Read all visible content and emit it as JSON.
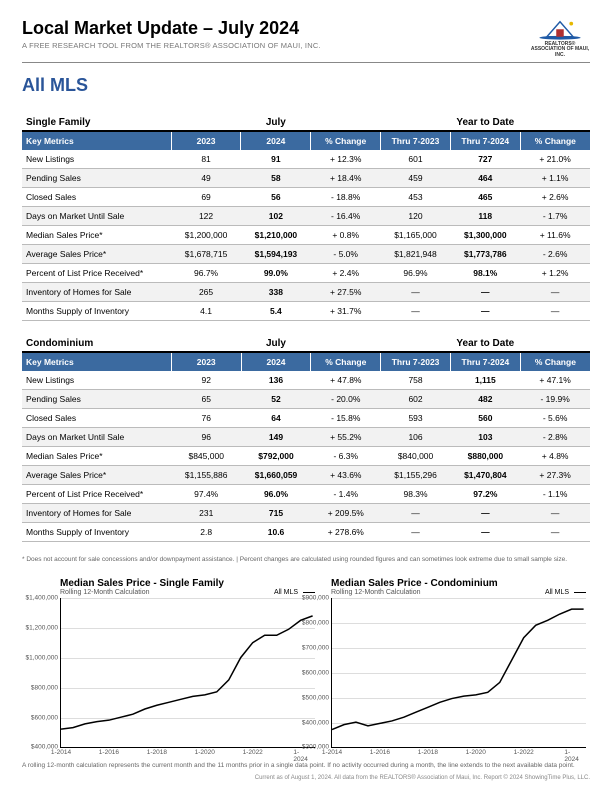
{
  "header": {
    "title": "Local Market Update – July 2024",
    "subtitle": "A FREE RESEARCH TOOL FROM THE REALTORS® ASSOCIATION OF MAUI, INC.",
    "logo_caption": "REALTORS® ASSOCIATION\nOF MAUI, INC.",
    "section": "All MLS",
    "accent_color": "#2a5599",
    "header_bg": "#3b6aa0"
  },
  "tables": [
    {
      "name": "Single Family",
      "period_a": "July",
      "period_b": "Year to Date",
      "cols": [
        "Key Metrics",
        "2023",
        "2024",
        "% Change",
        "Thru 7-2023",
        "Thru 7-2024",
        "% Change"
      ],
      "rows": [
        {
          "metric": "New Listings",
          "a1": "81",
          "a2": "91",
          "ac": "+ 12.3%",
          "b1": "601",
          "b2": "727",
          "bc": "+ 21.0%"
        },
        {
          "metric": "Pending Sales",
          "a1": "49",
          "a2": "58",
          "ac": "+ 18.4%",
          "b1": "459",
          "b2": "464",
          "bc": "+ 1.1%"
        },
        {
          "metric": "Closed Sales",
          "a1": "69",
          "a2": "56",
          "ac": "- 18.8%",
          "b1": "453",
          "b2": "465",
          "bc": "+ 2.6%"
        },
        {
          "metric": "Days on Market Until Sale",
          "a1": "122",
          "a2": "102",
          "ac": "- 16.4%",
          "b1": "120",
          "b2": "118",
          "bc": "- 1.7%"
        },
        {
          "metric": "Median Sales Price*",
          "a1": "$1,200,000",
          "a2": "$1,210,000",
          "ac": "+ 0.8%",
          "b1": "$1,165,000",
          "b2": "$1,300,000",
          "bc": "+ 11.6%"
        },
        {
          "metric": "Average Sales Price*",
          "a1": "$1,678,715",
          "a2": "$1,594,193",
          "ac": "- 5.0%",
          "b1": "$1,821,948",
          "b2": "$1,773,786",
          "bc": "- 2.6%"
        },
        {
          "metric": "Percent of List Price Received*",
          "a1": "96.7%",
          "a2": "99.0%",
          "ac": "+ 2.4%",
          "b1": "96.9%",
          "b2": "98.1%",
          "bc": "+ 1.2%"
        },
        {
          "metric": "Inventory of Homes for Sale",
          "a1": "265",
          "a2": "338",
          "ac": "+ 27.5%",
          "b1": "—",
          "b2": "—",
          "bc": "—"
        },
        {
          "metric": "Months Supply of Inventory",
          "a1": "4.1",
          "a2": "5.4",
          "ac": "+ 31.7%",
          "b1": "—",
          "b2": "—",
          "bc": "—"
        }
      ]
    },
    {
      "name": "Condominium",
      "period_a": "July",
      "period_b": "Year to Date",
      "cols": [
        "Key Metrics",
        "2023",
        "2024",
        "% Change",
        "Thru 7-2023",
        "Thru 7-2024",
        "% Change"
      ],
      "rows": [
        {
          "metric": "New Listings",
          "a1": "92",
          "a2": "136",
          "ac": "+ 47.8%",
          "b1": "758",
          "b2": "1,115",
          "bc": "+ 47.1%"
        },
        {
          "metric": "Pending Sales",
          "a1": "65",
          "a2": "52",
          "ac": "- 20.0%",
          "b1": "602",
          "b2": "482",
          "bc": "- 19.9%"
        },
        {
          "metric": "Closed Sales",
          "a1": "76",
          "a2": "64",
          "ac": "- 15.8%",
          "b1": "593",
          "b2": "560",
          "bc": "- 5.6%"
        },
        {
          "metric": "Days on Market Until Sale",
          "a1": "96",
          "a2": "149",
          "ac": "+ 55.2%",
          "b1": "106",
          "b2": "103",
          "bc": "- 2.8%"
        },
        {
          "metric": "Median Sales Price*",
          "a1": "$845,000",
          "a2": "$792,000",
          "ac": "- 6.3%",
          "b1": "$840,000",
          "b2": "$880,000",
          "bc": "+ 4.8%"
        },
        {
          "metric": "Average Sales Price*",
          "a1": "$1,155,886",
          "a2": "$1,660,059",
          "ac": "+ 43.6%",
          "b1": "$1,155,296",
          "b2": "$1,470,804",
          "bc": "+ 27.3%"
        },
        {
          "metric": "Percent of List Price Received*",
          "a1": "97.4%",
          "a2": "96.0%",
          "ac": "- 1.4%",
          "b1": "98.3%",
          "b2": "97.2%",
          "bc": "- 1.1%"
        },
        {
          "metric": "Inventory of Homes for Sale",
          "a1": "231",
          "a2": "715",
          "ac": "+ 209.5%",
          "b1": "—",
          "b2": "—",
          "bc": "—"
        },
        {
          "metric": "Months Supply of Inventory",
          "a1": "2.8",
          "a2": "10.6",
          "ac": "+ 278.6%",
          "b1": "—",
          "b2": "—",
          "bc": "—"
        }
      ]
    }
  ],
  "table_footnote": "* Does not account for sale concessions and/or downpayment assistance. | Percent changes are calculated using rounded figures and can sometimes look extreme due to small sample size.",
  "charts": [
    {
      "title": "Median Sales Price - Single Family",
      "subtitle": "Rolling 12-Month Calculation",
      "legend": "All MLS",
      "type": "line",
      "line_color": "#000000",
      "grid_color": "#dddddd",
      "ylim": [
        400000,
        1400000
      ],
      "ytick_step": 200000,
      "yticks": [
        "$400,000",
        "$600,000",
        "$800,000",
        "$1,000,000",
        "$1,200,000",
        "$1,400,000"
      ],
      "xticks": [
        "1-2014",
        "1-2016",
        "1-2018",
        "1-2020",
        "1-2022",
        "1-2024"
      ],
      "xlim": [
        2014,
        2024.6
      ],
      "points": [
        [
          2014.0,
          520000
        ],
        [
          2014.5,
          530000
        ],
        [
          2015.0,
          555000
        ],
        [
          2015.5,
          570000
        ],
        [
          2016.0,
          580000
        ],
        [
          2016.5,
          600000
        ],
        [
          2017.0,
          620000
        ],
        [
          2017.5,
          655000
        ],
        [
          2018.0,
          680000
        ],
        [
          2018.5,
          700000
        ],
        [
          2019.0,
          720000
        ],
        [
          2019.5,
          740000
        ],
        [
          2020.0,
          750000
        ],
        [
          2020.5,
          770000
        ],
        [
          2021.0,
          850000
        ],
        [
          2021.5,
          1000000
        ],
        [
          2022.0,
          1100000
        ],
        [
          2022.5,
          1150000
        ],
        [
          2023.0,
          1150000
        ],
        [
          2023.5,
          1190000
        ],
        [
          2024.0,
          1250000
        ],
        [
          2024.5,
          1280000
        ]
      ]
    },
    {
      "title": "Median Sales Price - Condominium",
      "subtitle": "Rolling 12-Month Calculation",
      "legend": "All MLS",
      "type": "line",
      "line_color": "#000000",
      "grid_color": "#dddddd",
      "ylim": [
        300000,
        900000
      ],
      "ytick_step": 100000,
      "yticks": [
        "$300,000",
        "$400,000",
        "$500,000",
        "$600,000",
        "$700,000",
        "$800,000",
        "$900,000"
      ],
      "xticks": [
        "1-2014",
        "1-2016",
        "1-2018",
        "1-2020",
        "1-2022",
        "1-2024"
      ],
      "xlim": [
        2014,
        2024.6
      ],
      "points": [
        [
          2014.0,
          370000
        ],
        [
          2014.5,
          390000
        ],
        [
          2015.0,
          400000
        ],
        [
          2015.5,
          385000
        ],
        [
          2016.0,
          395000
        ],
        [
          2016.5,
          405000
        ],
        [
          2017.0,
          420000
        ],
        [
          2017.5,
          440000
        ],
        [
          2018.0,
          460000
        ],
        [
          2018.5,
          480000
        ],
        [
          2019.0,
          495000
        ],
        [
          2019.5,
          505000
        ],
        [
          2020.0,
          510000
        ],
        [
          2020.5,
          520000
        ],
        [
          2021.0,
          560000
        ],
        [
          2021.5,
          650000
        ],
        [
          2022.0,
          740000
        ],
        [
          2022.5,
          790000
        ],
        [
          2023.0,
          810000
        ],
        [
          2023.5,
          835000
        ],
        [
          2024.0,
          855000
        ],
        [
          2024.5,
          855000
        ]
      ]
    }
  ],
  "chart_footnote": "A rolling 12-month calculation represents the current month and the 11 months prior in a single data point. If no activity occurred during a month, the line extends to the next available data point.",
  "credit": "Current as of August 1, 2024. All data from the REALTORS® Association of Maui, Inc. Report © 2024 ShowingTime Plus, LLC."
}
